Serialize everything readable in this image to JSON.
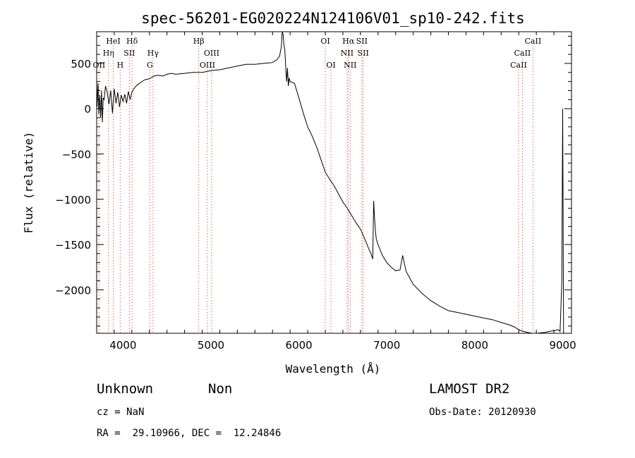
{
  "chart_data": {
    "type": "line",
    "title": "spec-56201-EG020224N124106V01_sp10-242.fits",
    "xlabel": "Wavelength (Å)",
    "ylabel": "Flux (relative)",
    "xlim": [
      3700,
      9100
    ],
    "ylim": [
      -2480,
      850
    ],
    "xticks": [
      4000,
      5000,
      6000,
      7000,
      8000,
      9000
    ],
    "yticks": [
      500,
      0,
      -500,
      -1000,
      -1500,
      -2000
    ],
    "series": [
      {
        "x": [
          3700,
          3705,
          3715,
          3725,
          3735,
          3745,
          3755,
          3765,
          3775,
          3785,
          3800,
          3820,
          3840,
          3860,
          3880,
          3900,
          3920,
          3940,
          3960,
          3980,
          4000,
          4020,
          4040,
          4060,
          4080,
          4100,
          4130,
          4160,
          4200,
          4250,
          4300,
          4350,
          4400,
          4450,
          4500,
          4550,
          4600,
          4700,
          4800,
          4900,
          5000,
          5100,
          5200,
          5300,
          5400,
          5500,
          5600,
          5700,
          5750,
          5780,
          5800,
          5810,
          5820,
          5830,
          5840,
          5850,
          5860,
          5870,
          5880,
          5890,
          5900,
          5950,
          6000,
          6050,
          6100,
          6150,
          6200,
          6250,
          6300,
          6350,
          6400,
          6450,
          6500,
          6550,
          6600,
          6650,
          6700,
          6750,
          6800,
          6820,
          6840,
          6850,
          6860,
          6870,
          6880,
          6900,
          6950,
          7000,
          7050,
          7100,
          7150,
          7180,
          7200,
          7220,
          7250,
          7300,
          7400,
          7500,
          7600,
          7700,
          7800,
          7900,
          8000,
          8100,
          8200,
          8300,
          8400,
          8450,
          8500,
          8550,
          8600,
          8650,
          8700,
          8750,
          8800,
          8850,
          8900,
          8950,
          8970,
          8980,
          8990,
          9000,
          9010
        ],
        "y": [
          300,
          20,
          280,
          -60,
          150,
          -100,
          200,
          -150,
          120,
          100,
          250,
          180,
          50,
          200,
          -50,
          220,
          60,
          180,
          20,
          150,
          80,
          160,
          60,
          190,
          100,
          180,
          230,
          260,
          290,
          320,
          330,
          360,
          370,
          360,
          380,
          390,
          380,
          390,
          400,
          400,
          420,
          430,
          450,
          470,
          490,
          490,
          500,
          510,
          540,
          580,
          680,
          850,
          820,
          700,
          650,
          450,
          300,
          450,
          250,
          340,
          300,
          280,
          120,
          -50,
          -200,
          -300,
          -420,
          -560,
          -700,
          -780,
          -850,
          -940,
          -1030,
          -1100,
          -1180,
          -1260,
          -1330,
          -1440,
          -1560,
          -1600,
          -1660,
          -1020,
          -1200,
          -1350,
          -1440,
          -1500,
          -1620,
          -1700,
          -1750,
          -1790,
          -1780,
          -1620,
          -1710,
          -1800,
          -1850,
          -1940,
          -2040,
          -2120,
          -2180,
          -2230,
          -2250,
          -2270,
          -2290,
          -2310,
          -2330,
          -2360,
          -2390,
          -2410,
          -2440,
          -2460,
          -2470,
          -2480,
          -2480,
          -2475,
          -2470,
          -2460,
          -2450,
          -2440,
          -2460,
          -2200,
          -1900,
          0,
          -2480
        ]
      }
    ],
    "lines": [
      {
        "label": "OII",
        "x": 3727,
        "row": 2
      },
      {
        "label": "Hη",
        "x": 3835,
        "row": 1
      },
      {
        "label": "HeI",
        "x": 3889,
        "row": 0
      },
      {
        "label": "H",
        "x": 3968,
        "row": 2
      },
      {
        "label": "SII",
        "x": 4072,
        "row": 1
      },
      {
        "label": "Hδ",
        "x": 4102,
        "row": 0
      },
      {
        "label": "G",
        "x": 4305,
        "row": 2
      },
      {
        "label": "Hγ",
        "x": 4341,
        "row": 1
      },
      {
        "label": "Hβ",
        "x": 4861,
        "row": 0
      },
      {
        "label": "OIII",
        "x": 4959,
        "row": 2
      },
      {
        "label": "OIII",
        "x": 5007,
        "row": 1
      },
      {
        "label": "OI",
        "x": 6300,
        "row": 0
      },
      {
        "label": "OI",
        "x": 6364,
        "row": 2
      },
      {
        "label": "NII",
        "x": 6548,
        "row": 1
      },
      {
        "label": "Hα",
        "x": 6563,
        "row": 0
      },
      {
        "label": "NII",
        "x": 6583,
        "row": 2
      },
      {
        "label": "SII",
        "x": 6716,
        "row": 0
      },
      {
        "label": "SII",
        "x": 6731,
        "row": 1
      },
      {
        "label": "CaII",
        "x": 8498,
        "row": 2
      },
      {
        "label": "CaII",
        "x": 8542,
        "row": 1
      },
      {
        "label": "CaII",
        "x": 8662,
        "row": 0
      }
    ],
    "grid": false,
    "line_color": "#000000",
    "marker_color": "#e0302a"
  },
  "info": {
    "class": "Unknown",
    "subclass": "Non",
    "survey": "LAMOST DR2",
    "cz": "cz = NaN",
    "obs_date": "Obs-Date: 20120930",
    "radec": "RA =  29.10966, DEC =  12.24846"
  }
}
